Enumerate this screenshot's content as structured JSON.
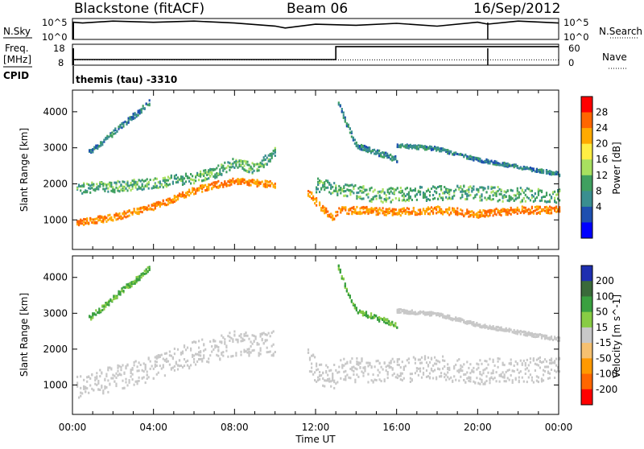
{
  "header": {
    "station": "Blackstone (fitACF)",
    "beam": "Beam 06",
    "date": "16/Sep/2012"
  },
  "nsky_panel": {
    "left_label": "N.Sky",
    "right_label": "N.Search",
    "left_ticks": [
      "10^5",
      "10^0"
    ],
    "right_ticks": [
      "10^5",
      "10^0"
    ]
  },
  "freq_panel": {
    "left_label_line1": "Freq.",
    "left_label_line2": "[MHz]",
    "right_label": "Nave",
    "left_ticks": [
      "18",
      "8"
    ],
    "right_ticks": [
      "60",
      "0"
    ],
    "cpid_label": "CPID",
    "cpid_text": "themis (tau) -3310"
  },
  "power_panel": {
    "ylabel": "Slant Range [km]",
    "colorbar_label": "Power [dB]",
    "colorbar_ticks": [
      "28",
      "24",
      "20",
      "16",
      "12",
      "8",
      "4"
    ],
    "colorbar_colors": [
      "#ff0000",
      "#ff6600",
      "#ffaa00",
      "#ffee44",
      "#a8e060",
      "#40a060",
      "#3a8f90",
      "#1e4fb0",
      "#0000ff"
    ]
  },
  "velocity_panel": {
    "ylabel": "Slant Range [km]",
    "colorbar_label": "Velocity [m s^-1]",
    "colorbar_ticks": [
      "200",
      "100",
      "50",
      "15",
      "-15",
      "-50",
      "-100",
      "-200"
    ],
    "colorbar_colors": [
      "#1e2fb0",
      "#3a6a3a",
      "#3aa040",
      "#88cc44",
      "#c8c8c8",
      "#f5c070",
      "#ff9900",
      "#ff6600",
      "#ff0000"
    ]
  },
  "xaxis": {
    "title": "Time UT",
    "ticks": [
      "00:00",
      "04:00",
      "08:00",
      "12:00",
      "16:00",
      "20:00",
      "00:00"
    ]
  },
  "chart_data": [
    {
      "type": "line",
      "name": "N.Sky / N.Search",
      "xlim_hours": [
        0,
        24
      ],
      "y_scale": "log",
      "x": [
        0,
        0.5,
        2,
        4,
        6,
        8,
        10,
        10.5,
        12,
        14,
        16,
        18,
        20,
        20.5,
        22,
        24
      ],
      "y_nsky": [
        10000.0,
        20000.0,
        20000.0,
        30000.0,
        20000.0,
        20000.0,
        1000.0,
        1000.0,
        3000.0,
        5000.0,
        5000.0,
        3000.0,
        10000.0,
        10000.0,
        20000.0,
        20000.0
      ],
      "markers_hours": [
        0.05,
        20.5
      ]
    },
    {
      "type": "line",
      "name": "Freq / Nave",
      "xlim_hours": [
        0,
        24
      ],
      "freq_ylim": [
        8,
        18
      ],
      "nave_ylim": [
        0,
        60
      ],
      "freq_steps": [
        {
          "x": 0.05,
          "y": 10.5
        },
        {
          "x": 13.0,
          "y": 17.2
        },
        {
          "x": 24,
          "y": 17.2
        }
      ],
      "nave_dotted": 14,
      "markers_hours": [
        0.05,
        20.5
      ]
    },
    {
      "type": "heatmap",
      "name": "Power",
      "x_unit": "hours UT",
      "y_unit": "km",
      "xlim": [
        0,
        24
      ],
      "ylim": [
        180,
        4600
      ],
      "ytick_values": [
        1000,
        2000,
        3000,
        4000
      ],
      "bands": [
        {
          "x": [
            0.2,
            2,
            4,
            6,
            7,
            8,
            9,
            10
          ],
          "y": [
            950,
            1100,
            1400,
            1850,
            2000,
            2100,
            2050,
            2000
          ],
          "width": 180,
          "value": 26
        },
        {
          "x": [
            0.2,
            2,
            4,
            6,
            7,
            8,
            9,
            10
          ],
          "y": [
            1900,
            1950,
            2050,
            2200,
            2350,
            2600,
            2450,
            2900
          ],
          "width": 300,
          "value": 12
        },
        {
          "x": [
            11.6,
            12.2,
            12.8,
            13.1,
            14,
            16,
            18,
            20,
            22,
            24
          ],
          "y": [
            1800,
            1400,
            1100,
            1300,
            1300,
            1250,
            1300,
            1200,
            1300,
            1300
          ],
          "width": 200,
          "value": 26
        },
        {
          "x": [
            12,
            13,
            15,
            17,
            19,
            21,
            23,
            24
          ],
          "y": [
            2000,
            1900,
            1700,
            1750,
            1800,
            1750,
            1700,
            1700
          ],
          "width": 400,
          "value": 12
        },
        {
          "x": [
            0.8,
            1.5,
            2.5,
            3.2,
            3.8
          ],
          "y": [
            2900,
            3200,
            3700,
            4000,
            4300
          ],
          "width": 150,
          "value": 8
        },
        {
          "x": [
            13.1,
            13.5,
            14,
            15,
            16
          ],
          "y": [
            4300,
            3700,
            3100,
            2900,
            2700
          ],
          "width": 150,
          "value": 8
        },
        {
          "x": [
            16,
            18,
            20,
            22,
            24
          ],
          "y": [
            3100,
            3000,
            2700,
            2500,
            2300
          ],
          "width": 100,
          "value": 8
        }
      ]
    },
    {
      "type": "heatmap",
      "name": "Velocity",
      "x_unit": "hours UT",
      "y_unit": "km",
      "xlim": [
        0,
        24
      ],
      "ylim": [
        180,
        4600
      ],
      "ytick_values": [
        1000,
        2000,
        3000,
        4000
      ],
      "bands": [
        {
          "x": [
            0.2,
            2,
            4,
            6,
            7,
            8,
            9,
            10
          ],
          "y": [
            1000,
            1200,
            1500,
            1900,
            2050,
            2200,
            2100,
            2200
          ],
          "width": 700,
          "value": 0
        },
        {
          "x": [
            11.6,
            12.2,
            12.8,
            13.1,
            14,
            16,
            18,
            20,
            22,
            24
          ],
          "y": [
            1700,
            1350,
            1200,
            1450,
            1450,
            1450,
            1500,
            1400,
            1450,
            1450
          ],
          "width": 700,
          "value": 0
        },
        {
          "x": [
            0.8,
            1.5,
            2.5,
            3.2,
            3.8
          ],
          "y": [
            2900,
            3200,
            3700,
            4000,
            4300
          ],
          "width": 150,
          "value": 15
        },
        {
          "x": [
            13.1,
            13.5,
            14,
            15,
            16
          ],
          "y": [
            4300,
            3700,
            3100,
            2900,
            2700
          ],
          "width": 150,
          "value": 15
        },
        {
          "x": [
            16,
            18,
            20,
            22,
            24
          ],
          "y": [
            3100,
            3000,
            2700,
            2500,
            2300
          ],
          "width": 100,
          "value": 0
        }
      ]
    }
  ]
}
